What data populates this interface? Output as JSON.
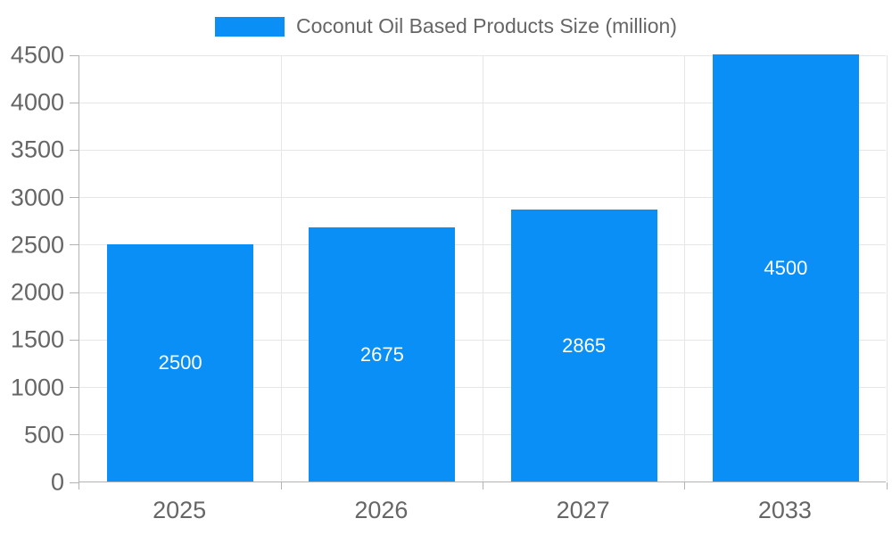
{
  "chart_data": {
    "type": "bar",
    "title": "",
    "legend": "Coconut Oil Based Products Size (million)",
    "legend_position": "top-center",
    "categories": [
      "2025",
      "2026",
      "2027",
      "2033"
    ],
    "values": [
      2500,
      2675,
      2865,
      4500
    ],
    "xlabel": "",
    "ylabel": "",
    "ylim": [
      0,
      4500
    ],
    "ytick_step": 500,
    "grid": true,
    "colors": {
      "bar": "#0a8ff7",
      "bar_label": "#ffffff",
      "axis_text": "#666666",
      "axis_line": "#b3b3b3",
      "gridline": "#e6e6e6",
      "background": "#ffffff"
    }
  }
}
